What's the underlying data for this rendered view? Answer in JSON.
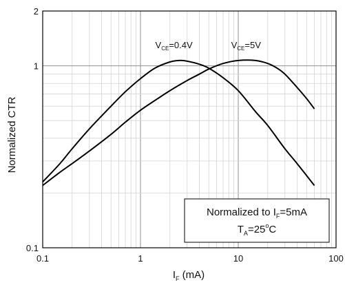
{
  "chart_data": {
    "type": "line",
    "xscale": "log",
    "yscale": "log",
    "xlim": [
      0.1,
      100
    ],
    "ylim": [
      0.1,
      2
    ],
    "grid": true,
    "xlabel": {
      "main": "I",
      "sub": "F",
      "tail": " (mA)"
    },
    "ylabel": "Normalized CTR",
    "x_ticks": [
      {
        "value": 0.1,
        "label": "0.1"
      },
      {
        "value": 1,
        "label": "1"
      },
      {
        "value": 10,
        "label": "10"
      },
      {
        "value": 100,
        "label": "100"
      }
    ],
    "y_ticks": [
      {
        "value": 0.1,
        "label": "0.1"
      },
      {
        "value": 1,
        "label": "1"
      },
      {
        "value": 2,
        "label": "2"
      }
    ],
    "series": [
      {
        "name": "V_CE=0.4V",
        "label_parts": {
          "main": "V",
          "sub": "CE",
          "tail": "=0.4V"
        },
        "label_anchor": [
          2.2,
          1.25
        ],
        "x": [
          0.1,
          0.15,
          0.2,
          0.3,
          0.5,
          0.7,
          1,
          1.4,
          2,
          2.5,
          3,
          4,
          5,
          7,
          10,
          15,
          20,
          30,
          40,
          60
        ],
        "y": [
          0.23,
          0.29,
          0.35,
          0.45,
          0.6,
          0.72,
          0.85,
          0.97,
          1.05,
          1.07,
          1.06,
          1.02,
          0.97,
          0.86,
          0.73,
          0.56,
          0.47,
          0.35,
          0.29,
          0.22
        ]
      },
      {
        "name": "V_CE=5V",
        "label_parts": {
          "main": "V",
          "sub": "CE",
          "tail": "=5V"
        },
        "label_anchor": [
          12,
          1.25
        ],
        "x": [
          0.1,
          0.15,
          0.2,
          0.3,
          0.5,
          0.7,
          1,
          1.5,
          2,
          3,
          4,
          5,
          7,
          10,
          15,
          20,
          25,
          30,
          40,
          50,
          60
        ],
        "y": [
          0.22,
          0.26,
          0.29,
          0.34,
          0.42,
          0.49,
          0.57,
          0.66,
          0.73,
          0.83,
          0.9,
          0.96,
          1.03,
          1.07,
          1.07,
          1.03,
          0.97,
          0.9,
          0.76,
          0.66,
          0.58
        ]
      }
    ],
    "annotation": {
      "line1": {
        "main": "Normalized to I",
        "sub": "F",
        "tail": "=5mA"
      },
      "line2": {
        "main": "T",
        "sub": "A",
        "tail": "=25",
        "sup": "o",
        "tail2": "C"
      }
    }
  }
}
